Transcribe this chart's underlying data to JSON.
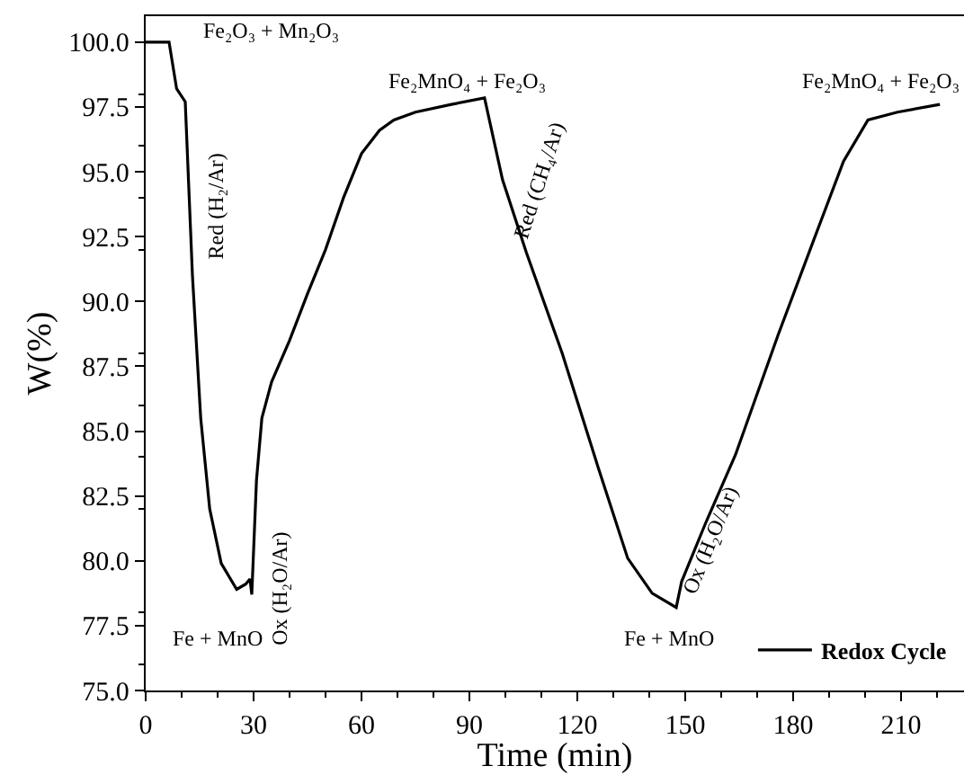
{
  "chart_data": {
    "type": "line",
    "xlabel": "Time (min)",
    "ylabel": "W(%)",
    "xlim": [
      0,
      227.5
    ],
    "xticks": [
      0,
      30,
      60,
      90,
      120,
      150,
      180,
      210
    ],
    "ylim": [
      75,
      101
    ],
    "yticks": [
      {
        "value": 75,
        "label": "75.0"
      },
      {
        "value": 77.5,
        "label": "77.5"
      },
      {
        "value": 80,
        "label": "80.0"
      },
      {
        "value": 82.5,
        "label": "82.5"
      },
      {
        "value": 85,
        "label": "85.0"
      },
      {
        "value": 87.5,
        "label": "87.5"
      },
      {
        "value": 90,
        "label": "90.0"
      },
      {
        "value": 92.5,
        "label": "92.5"
      },
      {
        "value": 95,
        "label": "95.0"
      },
      {
        "value": 97.5,
        "label": "97.5"
      },
      {
        "value": 100,
        "label": "100.0"
      }
    ],
    "legend": "bottom right",
    "marker": "none",
    "line_style": "solid",
    "series": [
      {
        "name": "Redox Cycle",
        "color": "#000000",
        "x": [
          0,
          6.5,
          8.6,
          11,
          13,
          15.3,
          17.8,
          21,
          25.3,
          27.8,
          29,
          29.5,
          30.8,
          32.3,
          35,
          40,
          45,
          50,
          55,
          60,
          65,
          69,
          75,
          85,
          94.2,
          99.2,
          105.8,
          115.8,
          125.8,
          134,
          140.8,
          147.5,
          149,
          155.8,
          164,
          175.8,
          185.8,
          194,
          200.8,
          209,
          220.8
        ],
        "values": [
          100,
          100,
          98.2,
          97.7,
          91.0,
          85.5,
          82.0,
          79.9,
          78.9,
          79.1,
          79.3,
          78.7,
          83.1,
          85.5,
          86.9,
          88.5,
          90.3,
          92.0,
          94.0,
          95.7,
          96.6,
          97.0,
          97.3,
          97.6,
          97.85,
          94.7,
          91.9,
          88.0,
          83.6,
          80.1,
          78.75,
          78.2,
          79.2,
          81.5,
          84.1,
          88.7,
          92.4,
          95.4,
          97.0,
          97.3,
          97.6
        ]
      }
    ],
    "annotations": [
      "Fe₂O₃ + Mn₂O₃",
      "Red (H₂/Ar)",
      "Ox (H₂O/Ar)",
      "Fe + MnO",
      "Fe₂MnO₄ + Fe₂O₃",
      "Red (CH₄/Ar)",
      "Fe + MnO",
      "Ox (H₂O/Ar)",
      "Fe₂MnO₄ + Fe₂O₃"
    ]
  }
}
